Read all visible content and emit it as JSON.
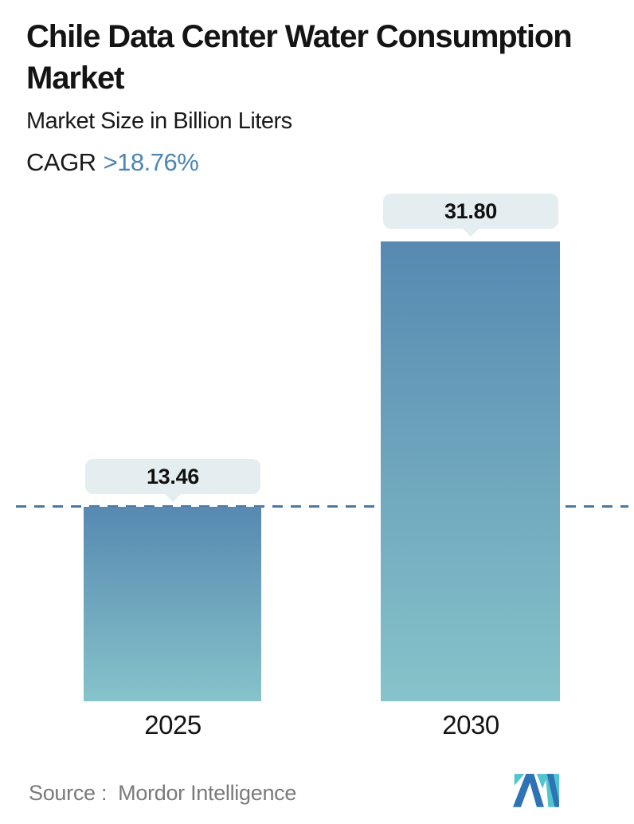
{
  "header": {
    "title": "Chile Data Center Water Consumption Market",
    "subtitle": "Market Size in Billion Liters",
    "cagr_label": "CAGR",
    "cagr_value": ">18.76%"
  },
  "chart_data": {
    "type": "bar",
    "title": "Chile Data Center Water Consumption Market",
    "subtitle": "Market Size in Billion Liters",
    "unit": "Billion Liters",
    "categories": [
      "2025",
      "2030"
    ],
    "values": [
      13.46,
      31.8
    ],
    "value_labels": [
      "13.46",
      "31.80"
    ],
    "cagr": ">18.76%",
    "ylim": [
      0,
      31.8
    ],
    "grid": false,
    "legend": "none",
    "reference_line": {
      "style": "dashed",
      "value": 13.46,
      "color": "#4a7aa4"
    },
    "colors": {
      "bar_gradient_top": "#5789b1",
      "bar_gradient_bottom": "#86c3ca",
      "badge_background": "#e4edef",
      "cagr_accent": "#4c86b4",
      "logo_teal": "#50c4cf",
      "logo_blue": "#2d73b6"
    }
  },
  "footer": {
    "source_label": "Source :",
    "source_name": "Mordor Intelligence"
  }
}
